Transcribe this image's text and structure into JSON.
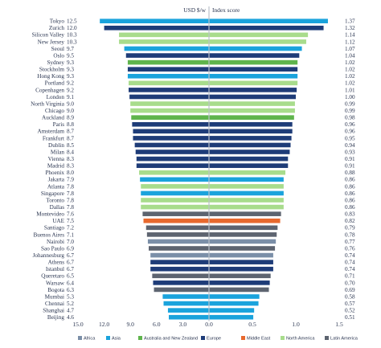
{
  "chart_data": {
    "type": "bar",
    "headers": {
      "left": "USD $/w",
      "right": "Index score"
    },
    "x_ticks": [
      "15.0",
      "12.0",
      "9.0",
      "6.0",
      "3.0",
      "0.0",
      "0.5",
      "1.0",
      "1.5"
    ],
    "left_range": [
      0,
      15
    ],
    "right_range": [
      0,
      1.5
    ],
    "region_colors": {
      "Africa": "#7b8fa8",
      "Asia": "#1aa3dc",
      "Australia and New Zealand": "#5fb44c",
      "Europe": "#1e3c78",
      "Middle East": "#e8692e",
      "North America": "#a8dc8c",
      "Latin America": "#5d6470"
    },
    "legend": [
      "Africa",
      "Asia",
      "Australia and New Zealand",
      "Europe",
      "Middle East",
      "North America",
      "Latin America"
    ],
    "rows": [
      {
        "city": "Tokyo",
        "usd": "12.5",
        "index": "1.37",
        "region": "Asia"
      },
      {
        "city": "Zurich",
        "usd": "12.0",
        "index": "1.32",
        "region": "Europe"
      },
      {
        "city": "Silicon Valley",
        "usd": "10.3",
        "index": "1.14",
        "region": "North America"
      },
      {
        "city": "New Jersey",
        "usd": "10.3",
        "index": "1.12",
        "region": "North America"
      },
      {
        "city": "Seoul",
        "usd": "9.7",
        "index": "1.07",
        "region": "Asia"
      },
      {
        "city": "Oslo",
        "usd": "9.5",
        "index": "1.04",
        "region": "Europe"
      },
      {
        "city": "Sydney",
        "usd": "9.3",
        "index": "1.02",
        "region": "Australia and New Zealand"
      },
      {
        "city": "Stockholm",
        "usd": "9.3",
        "index": "1.02",
        "region": "Europe"
      },
      {
        "city": "Hong Kong",
        "usd": "9.3",
        "index": "1.02",
        "region": "Asia"
      },
      {
        "city": "Portland",
        "usd": "9.2",
        "index": "1.02",
        "region": "North America"
      },
      {
        "city": "Copenhagen",
        "usd": "9.2",
        "index": "1.01",
        "region": "Europe"
      },
      {
        "city": "London",
        "usd": "9.1",
        "index": "1.00",
        "region": "Europe"
      },
      {
        "city": "North Virginia",
        "usd": "9.0",
        "index": "0.99",
        "region": "North America"
      },
      {
        "city": "Chicago",
        "usd": "9.0",
        "index": "0.99",
        "region": "North America"
      },
      {
        "city": "Auckland",
        "usd": "8.9",
        "index": "0.98",
        "region": "Australia and New Zealand"
      },
      {
        "city": "Paris",
        "usd": "8.8",
        "index": "0.96",
        "region": "Europe"
      },
      {
        "city": "Amsterdam",
        "usd": "8.7",
        "index": "0.96",
        "region": "Europe"
      },
      {
        "city": "Frankfurt",
        "usd": "8.7",
        "index": "0.95",
        "region": "Europe"
      },
      {
        "city": "Dublin",
        "usd": "8.5",
        "index": "0.94",
        "region": "Europe"
      },
      {
        "city": "Milan",
        "usd": "8.4",
        "index": "0.93",
        "region": "Europe"
      },
      {
        "city": "Vienna",
        "usd": "8.3",
        "index": "0.91",
        "region": "Europe"
      },
      {
        "city": "Madrid",
        "usd": "8.3",
        "index": "0.91",
        "region": "Europe"
      },
      {
        "city": "Phoenix",
        "usd": "8.0",
        "index": "0.88",
        "region": "North America"
      },
      {
        "city": "Jakarta",
        "usd": "7.9",
        "index": "0.86",
        "region": "Asia"
      },
      {
        "city": "Atlanta",
        "usd": "7.8",
        "index": "0.86",
        "region": "North America"
      },
      {
        "city": "Singapore",
        "usd": "7.8",
        "index": "0.86",
        "region": "Asia"
      },
      {
        "city": "Toronto",
        "usd": "7.8",
        "index": "0.86",
        "region": "North America"
      },
      {
        "city": "Dallas",
        "usd": "7.8",
        "index": "0.86",
        "region": "North America"
      },
      {
        "city": "Montevideo",
        "usd": "7.6",
        "index": "0.83",
        "region": "Latin America"
      },
      {
        "city": "UAE",
        "usd": "7.5",
        "index": "0.82",
        "region": "Middle East"
      },
      {
        "city": "Santiago",
        "usd": "7.2",
        "index": "0.79",
        "region": "Latin America"
      },
      {
        "city": "Buenos Aires",
        "usd": "7.1",
        "index": "0.78",
        "region": "Latin America"
      },
      {
        "city": "Nairobi",
        "usd": "7.0",
        "index": "0.77",
        "region": "Africa"
      },
      {
        "city": "Sao Paulo",
        "usd": "6.9",
        "index": "0.76",
        "region": "Latin America"
      },
      {
        "city": "Johannesburg",
        "usd": "6.7",
        "index": "0.74",
        "region": "Africa"
      },
      {
        "city": "Athens",
        "usd": "6.7",
        "index": "0.74",
        "region": "Europe"
      },
      {
        "city": "Istanbul",
        "usd": "6.7",
        "index": "0.74",
        "region": "Europe"
      },
      {
        "city": "Queretaro",
        "usd": "6.5",
        "index": "0.71",
        "region": "Latin America"
      },
      {
        "city": "Warsaw",
        "usd": "6.4",
        "index": "0.70",
        "region": "Europe"
      },
      {
        "city": "Bogota",
        "usd": "6.3",
        "index": "0.69",
        "region": "Latin America"
      },
      {
        "city": "Mumbai",
        "usd": "5.3",
        "index": "0.58",
        "region": "Asia"
      },
      {
        "city": "Chennai",
        "usd": "5.2",
        "index": "0.57",
        "region": "Asia"
      },
      {
        "city": "Shanghai",
        "usd": "4.7",
        "index": "0.52",
        "region": "Asia"
      },
      {
        "city": "Beijing",
        "usd": "4.6",
        "index": "0.51",
        "region": "Asia"
      }
    ]
  }
}
